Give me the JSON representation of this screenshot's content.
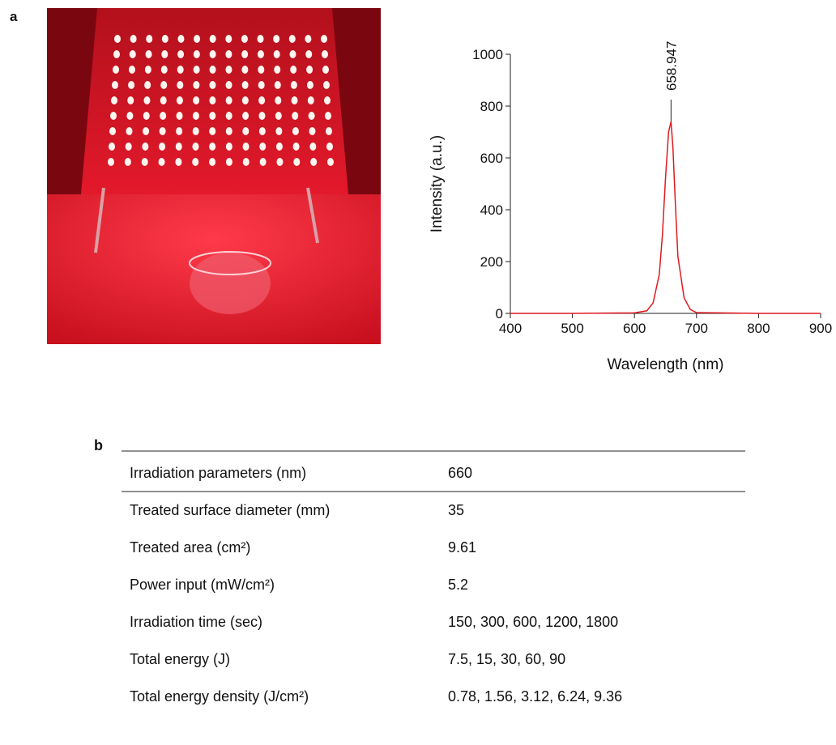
{
  "panel_a_label": "a",
  "panel_b_label": "b",
  "chart_data": {
    "type": "line",
    "xlabel": "Wavelength (nm)",
    "ylabel": "Intensity (a.u.)",
    "x": [
      400,
      500,
      600,
      620,
      630,
      640,
      645,
      650,
      655,
      658.947,
      662,
      666,
      670,
      680,
      690,
      700,
      800,
      900
    ],
    "values": [
      0,
      0,
      2,
      10,
      40,
      150,
      300,
      520,
      700,
      740,
      640,
      420,
      220,
      60,
      15,
      3,
      0,
      0
    ],
    "color": "#e0191f",
    "xlim": [
      400,
      900
    ],
    "xticks": [
      400,
      500,
      600,
      700,
      800,
      900
    ],
    "ylim": [
      0,
      1000
    ],
    "yticks": [
      0,
      200,
      400,
      600,
      800,
      1000
    ],
    "annotation": 658.947
  },
  "table": {
    "rows": [
      [
        "Irradiation parameters (nm)",
        "660"
      ],
      [
        "Treated surface diameter (mm)",
        "35"
      ],
      [
        "Treated area (cm²)",
        "9.61"
      ],
      [
        "Power input (mW/cm²)",
        "5.2"
      ],
      [
        "Irradiation time (sec)",
        "150, 300, 600, 1200, 1800"
      ],
      [
        "Total energy (J)",
        "7.5, 15, 30, 60, 90"
      ],
      [
        "Total energy density (J/cm²)",
        "0.78, 1.56, 3.12, 6.24, 9.36"
      ]
    ]
  }
}
